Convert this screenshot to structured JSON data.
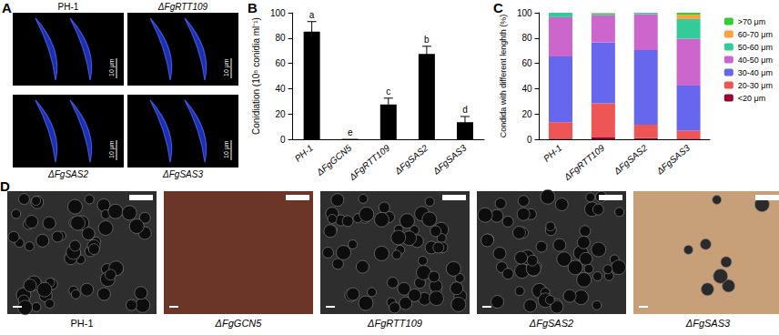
{
  "chart_data": [
    {
      "panel": "B",
      "type": "bar",
      "y_label": "Conidiation (10⁵ conidia ml⁻¹)",
      "categories": [
        "PH-1",
        "ΔFgGCN5",
        "ΔFgRTT109",
        "ΔFgSAS2",
        "ΔFgSAS3"
      ],
      "values": [
        85,
        0.3,
        27.5,
        67.5,
        13.5
      ],
      "errors": [
        8,
        0,
        5,
        6,
        4.5
      ],
      "letters": [
        "a",
        "e",
        "c",
        "b",
        "d"
      ],
      "color": "#000000",
      "ylim": [
        0,
        100
      ],
      "yticks": [
        0,
        20,
        40,
        60,
        80,
        100
      ],
      "grid": false
    },
    {
      "panel": "C",
      "type": "bar",
      "stacked": true,
      "y_label": "Condida with different lenghth (%)",
      "categories": [
        "PH-1",
        "ΔFgRTT109",
        "ΔFgSAS2",
        "ΔFgSAS3"
      ],
      "series": [
        {
          "name": ">70 μm",
          "color": "#33cc33",
          "values": [
            0,
            0,
            0,
            1.5
          ]
        },
        {
          "name": "60-70 μm",
          "color": "#ffa040",
          "values": [
            0,
            0.5,
            0,
            3.5
          ]
        },
        {
          "name": "50-60 μm",
          "color": "#33cc99",
          "values": [
            3.5,
            1.5,
            1,
            15.5
          ]
        },
        {
          "name": "40-50 μm",
          "color": "#cc66cc",
          "values": [
            31,
            21.5,
            28.5,
            37
          ]
        },
        {
          "name": "30-40 μm",
          "color": "#6666ee",
          "values": [
            52,
            48,
            59,
            35.5
          ]
        },
        {
          "name": "20-30 μm",
          "color": "#ee5555",
          "values": [
            13,
            27,
            10.5,
            6.5
          ]
        },
        {
          "name": "<20 μm",
          "color": "#990033",
          "values": [
            0.5,
            1.5,
            1,
            0.5
          ]
        }
      ],
      "ylim": [
        0,
        100
      ],
      "yticks": [
        0,
        20,
        40,
        60,
        80,
        100
      ],
      "legend": "right",
      "grid": false
    }
  ],
  "images": {
    "A": {
      "panel": "A",
      "labels": [
        "PH-1",
        "ΔFgRTT109",
        "ΔFgSAS2",
        "ΔFgSAS3"
      ],
      "scale_bar": "10 μm"
    },
    "D": {
      "panel": "D",
      "labels": [
        "PH-1",
        "ΔFgGCN5",
        "ΔFgRTT109",
        "ΔFgSAS2",
        "ΔFgSAS3"
      ]
    }
  }
}
